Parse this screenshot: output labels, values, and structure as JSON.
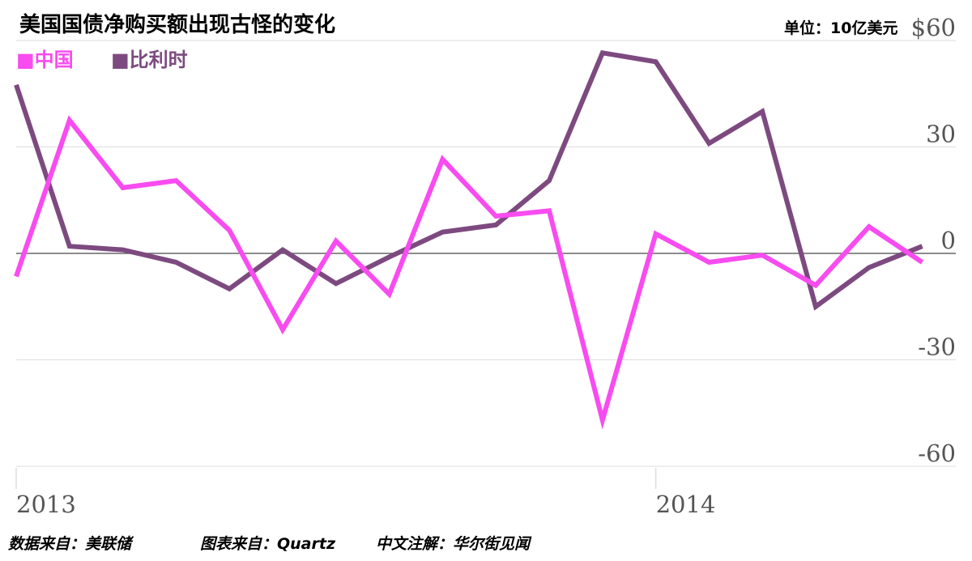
{
  "title": "美国国债净购买额出现古怪的变化",
  "unit": "单位：10亿美元",
  "colors": {
    "china": "#f84bf0",
    "belgium": "#7d4a80",
    "grid": "#dddddd",
    "zero": "#666666"
  },
  "legend": [
    {
      "label": "■中国",
      "color": "#f84bf0"
    },
    {
      "label": "■比利时",
      "color": "#7d4a80"
    }
  ],
  "footer": {
    "data_source": "数据来自：美联储",
    "chart_source": "图表来自：Quartz",
    "annotation": "中文注解：华尔街见闻"
  },
  "chart_data": {
    "type": "line",
    "title": "美国国债净购买额出现古怪的变化",
    "ylabel": "单位：10亿美元",
    "ylim": [
      -60,
      60
    ],
    "yticks": [
      60,
      30,
      0,
      -30,
      -60
    ],
    "ytick_labels": [
      "$60",
      "30",
      "0",
      "-30",
      "-60"
    ],
    "x_labels": [
      {
        "index": 0,
        "label": "2013"
      },
      {
        "index": 12,
        "label": "2014"
      }
    ],
    "legend_position": "top-left",
    "grid": true,
    "series": [
      {
        "name": "中国",
        "color": "#f84bf0",
        "values": [
          -6.5,
          37.5,
          18.5,
          20.5,
          6.5,
          -21.5,
          3.5,
          -11.5,
          26.5,
          10.5,
          12.0,
          -47.0,
          5.5,
          -2.5,
          -0.5,
          -9.0,
          7.5,
          -2.5
        ]
      },
      {
        "name": "比利时",
        "color": "#7d4a80",
        "values": [
          47.5,
          2.0,
          1.0,
          -2.5,
          -10.0,
          1.0,
          -8.5,
          -1.0,
          6.0,
          8.0,
          20.5,
          56.5,
          54.0,
          31.0,
          40.0,
          -15.0,
          -4.0,
          2.0
        ]
      }
    ]
  }
}
